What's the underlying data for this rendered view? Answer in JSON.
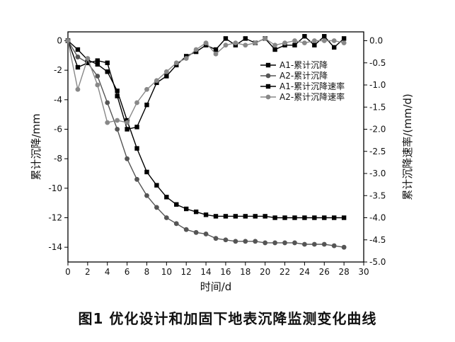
{
  "caption": "图1   优化设计和加固下地表沉降监测变化曲线",
  "chart_data": {
    "type": "line",
    "xlabel": "时间/d",
    "ylabel_left": "累计沉降/mm",
    "ylabel_right": "累计沉降速率/(mm/d)",
    "xlim": [
      0,
      30
    ],
    "ylim_left": [
      -15,
      0.6
    ],
    "ylim_right": [
      -5.0,
      0.2
    ],
    "x_ticks": [
      0,
      2,
      4,
      6,
      8,
      10,
      12,
      14,
      16,
      18,
      20,
      22,
      24,
      26,
      28,
      30
    ],
    "y_left_ticks": [
      0,
      -2,
      -4,
      -6,
      -8,
      -10,
      -12,
      -14
    ],
    "y_right_ticks": [
      0.0,
      -0.5,
      -1.0,
      -1.5,
      -2.0,
      -2.5,
      -3.0,
      -3.5,
      -4.0,
      -4.5,
      -5.0
    ],
    "legend_position": "top-right",
    "grid": false,
    "series": [
      {
        "name": "A1-累计沉降",
        "axis": "left",
        "marker": "square",
        "color": "#000000",
        "x": [
          0,
          1,
          2,
          3,
          4,
          5,
          6,
          7,
          8,
          9,
          10,
          11,
          12,
          13,
          14,
          15,
          16,
          17,
          18,
          19,
          20,
          21,
          22,
          23,
          24,
          25,
          26,
          27,
          28
        ],
        "y": [
          0,
          -0.6,
          -1.3,
          -1.6,
          -2.1,
          -3.4,
          -5.4,
          -7.3,
          -8.9,
          -9.8,
          -10.6,
          -11.1,
          -11.4,
          -11.6,
          -11.8,
          -11.9,
          -11.9,
          -11.9,
          -11.9,
          -11.9,
          -11.9,
          -12.0,
          -12.0,
          -12.0,
          -12.0,
          -12.0,
          -12.0,
          -12.0,
          -12.0
        ]
      },
      {
        "name": "A2-累计沉降",
        "axis": "left",
        "marker": "circle",
        "color": "#555555",
        "x": [
          0,
          1,
          2,
          3,
          4,
          5,
          6,
          7,
          8,
          9,
          10,
          11,
          12,
          13,
          14,
          15,
          16,
          17,
          18,
          19,
          20,
          21,
          22,
          23,
          24,
          25,
          26,
          27,
          28
        ],
        "y": [
          0,
          -1.1,
          -1.5,
          -2.4,
          -4.2,
          -6.0,
          -8.0,
          -9.4,
          -10.5,
          -11.3,
          -12.0,
          -12.4,
          -12.8,
          -13.0,
          -13.1,
          -13.4,
          -13.5,
          -13.6,
          -13.6,
          -13.6,
          -13.7,
          -13.7,
          -13.7,
          -13.7,
          -13.8,
          -13.8,
          -13.8,
          -13.9,
          -14.0
        ]
      },
      {
        "name": "A1-累计沉降速率",
        "axis": "right",
        "marker": "square",
        "color": "#000000",
        "x": [
          0,
          1,
          2,
          3,
          4,
          5,
          6,
          7,
          8,
          9,
          10,
          11,
          12,
          13,
          14,
          15,
          16,
          17,
          18,
          19,
          20,
          21,
          22,
          23,
          24,
          25,
          26,
          27,
          28
        ],
        "y": [
          0.0,
          -0.6,
          -0.5,
          -0.45,
          -0.5,
          -1.25,
          -2.0,
          -1.95,
          -1.45,
          -0.95,
          -0.8,
          -0.55,
          -0.35,
          -0.25,
          -0.1,
          -0.2,
          0.05,
          -0.1,
          0.05,
          -0.05,
          0.05,
          -0.2,
          -0.1,
          -0.1,
          0.1,
          -0.1,
          0.1,
          -0.15,
          0.05
        ]
      },
      {
        "name": "A2-累计沉降速率",
        "axis": "right",
        "marker": "circle",
        "color": "#888888",
        "x": [
          0,
          1,
          2,
          3,
          4,
          5,
          6,
          7,
          8,
          9,
          10,
          11,
          12,
          13,
          14,
          15,
          16,
          17,
          18,
          19,
          20,
          21,
          22,
          23,
          24,
          25,
          26,
          27,
          28
        ],
        "y": [
          0.0,
          -1.1,
          -0.4,
          -1.0,
          -1.85,
          -1.8,
          -1.85,
          -1.4,
          -1.1,
          -0.9,
          -0.7,
          -0.5,
          -0.4,
          -0.2,
          -0.05,
          -0.3,
          -0.1,
          -0.05,
          -0.1,
          -0.05,
          0.05,
          -0.1,
          -0.05,
          0.0,
          -0.05,
          0.0,
          0.0,
          0.0,
          -0.05
        ]
      }
    ]
  }
}
